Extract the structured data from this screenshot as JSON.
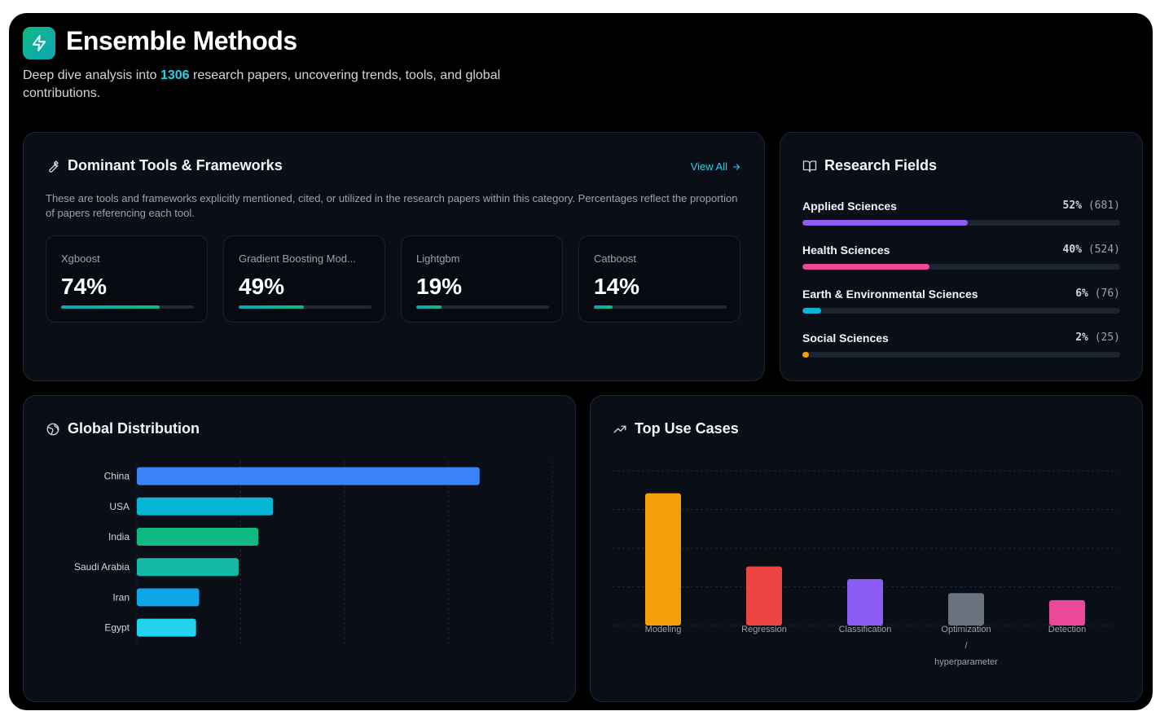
{
  "header": {
    "title": "Ensemble Methods",
    "subtitle_prefix": "Deep dive analysis into ",
    "paper_count": "1306",
    "subtitle_suffix": " research papers, uncovering trends, tools, and global contributions."
  },
  "tools": {
    "title": "Dominant Tools & Frameworks",
    "view_all": "View All",
    "description": "These are tools and frameworks explicitly mentioned, cited, or utilized in the research papers within this category. Percentages reflect the proportion of papers referencing each tool.",
    "items": [
      {
        "name": "Xgboost",
        "percent_label": "74%",
        "percent": 74
      },
      {
        "name": "Gradient Boosting Mod...",
        "percent_label": "49%",
        "percent": 49
      },
      {
        "name": "Lightgbm",
        "percent_label": "19%",
        "percent": 19
      },
      {
        "name": "Catboost",
        "percent_label": "14%",
        "percent": 14
      }
    ]
  },
  "fields": {
    "title": "Research Fields",
    "items": [
      {
        "name": "Applied Sciences",
        "percent_label": "52%",
        "count_label": "(681)",
        "percent": 52,
        "color": "#8b5cf6"
      },
      {
        "name": "Health Sciences",
        "percent_label": "40%",
        "count_label": "(524)",
        "percent": 40,
        "color": "#ec4899"
      },
      {
        "name": "Earth & Environmental Sciences",
        "percent_label": "6%",
        "count_label": "(76)",
        "percent": 6,
        "color": "#06b6d4"
      },
      {
        "name": "Social Sciences",
        "percent_label": "2%",
        "count_label": "(25)",
        "percent": 2,
        "color": "#f59e0b"
      }
    ]
  },
  "global": {
    "title": "Global Distribution"
  },
  "usecases": {
    "title": "Top Use Cases"
  },
  "chart_data": [
    {
      "type": "bar",
      "orientation": "horizontal",
      "title": "Global Distribution",
      "categories": [
        "China",
        "USA",
        "India",
        "Saudi Arabia",
        "Iran",
        "Egypt"
      ],
      "values": [
        330,
        131,
        117,
        98,
        60,
        57
      ],
      "colors": [
        "#3b82f6",
        "#06b6d4",
        "#10b981",
        "#14b8a6",
        "#0ea5e9",
        "#22d3ee"
      ],
      "xlim": [
        0,
        400
      ],
      "grid": true
    },
    {
      "type": "bar",
      "title": "Top Use Cases",
      "categories": [
        "Modeling",
        "Regression",
        "Classification",
        "Optimization / hyperparameter",
        "Detection"
      ],
      "category_lines": [
        [
          "Modeling"
        ],
        [
          "Regression"
        ],
        [
          "Classification"
        ],
        [
          "Optimization",
          "/",
          "hyperparameter"
        ],
        [
          "Detection"
        ]
      ],
      "values": [
        188,
        84,
        66,
        46,
        36
      ],
      "colors": [
        "#f59e0b",
        "#ef4444",
        "#8b5cf6",
        "#6b7280",
        "#ec4899"
      ],
      "ylim": [
        0,
        220
      ],
      "grid": true
    }
  ]
}
